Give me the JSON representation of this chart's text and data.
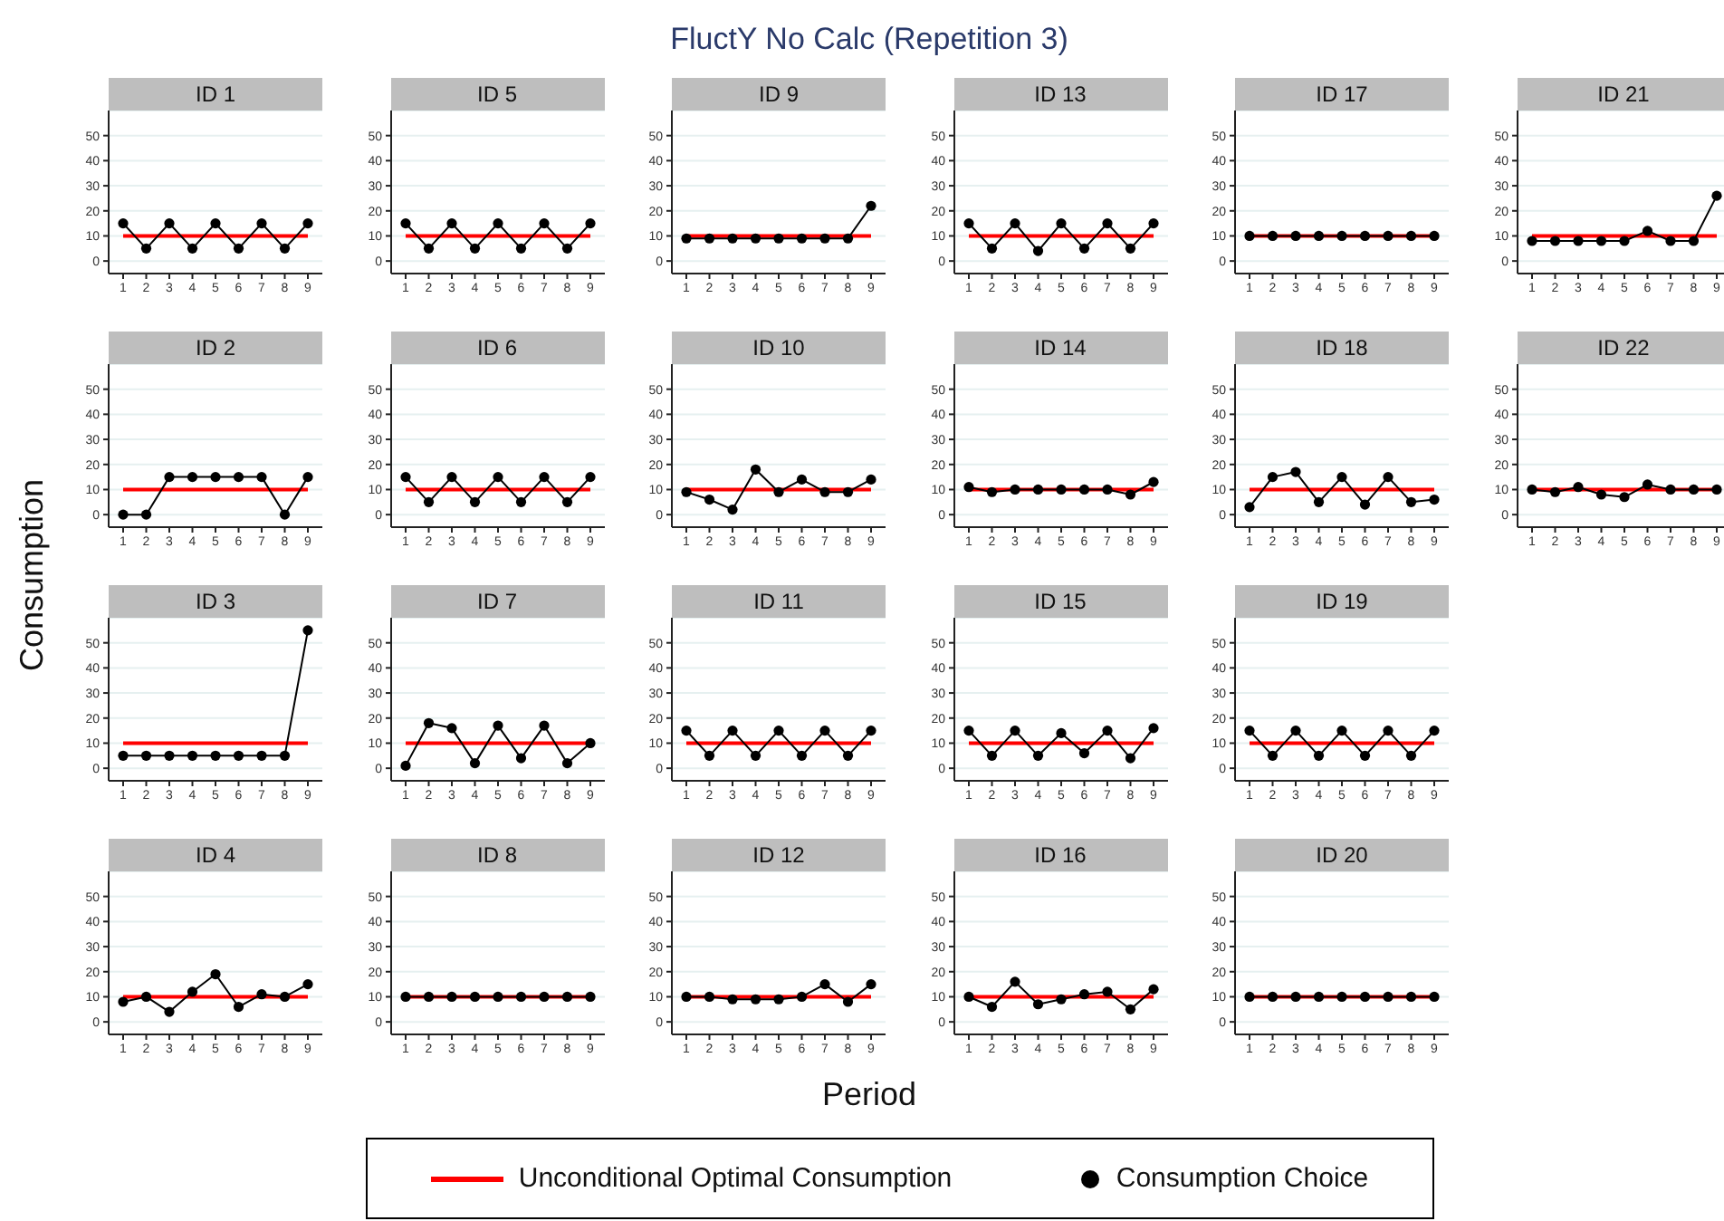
{
  "chart_data": [
    {
      "type": "other",
      "title": "FluctY No Calc (Repetition 3)",
      "xlabel": "Period",
      "ylabel": "Consumption"
    },
    {
      "type": "line",
      "title": "ID 1",
      "categories": [
        "1",
        "2",
        "3",
        "4",
        "5",
        "6",
        "7",
        "8",
        "9"
      ],
      "ylim": [
        -5,
        60
      ],
      "yticks": [
        0,
        10,
        20,
        30,
        40,
        50
      ],
      "grid": "y",
      "series": [
        {
          "color": "#ff0000",
          "marker": "none",
          "values": [
            10,
            10,
            10,
            10,
            10,
            10,
            10,
            10,
            10
          ]
        },
        {
          "color": "#000000",
          "marker": "circle",
          "values": [
            15,
            5,
            15,
            5,
            15,
            5,
            15,
            5,
            15
          ]
        }
      ]
    },
    {
      "type": "line",
      "title": "ID 5",
      "categories": [
        "1",
        "2",
        "3",
        "4",
        "5",
        "6",
        "7",
        "8",
        "9"
      ],
      "ylim": [
        -5,
        60
      ],
      "yticks": [
        0,
        10,
        20,
        30,
        40,
        50
      ],
      "grid": "y",
      "series": [
        {
          "color": "#ff0000",
          "marker": "none",
          "values": [
            10,
            10,
            10,
            10,
            10,
            10,
            10,
            10,
            10
          ]
        },
        {
          "color": "#000000",
          "marker": "circle",
          "values": [
            15,
            5,
            15,
            5,
            15,
            5,
            15,
            5,
            15
          ]
        }
      ]
    },
    {
      "type": "line",
      "title": "ID 9",
      "categories": [
        "1",
        "2",
        "3",
        "4",
        "5",
        "6",
        "7",
        "8",
        "9"
      ],
      "ylim": [
        -5,
        60
      ],
      "yticks": [
        0,
        10,
        20,
        30,
        40,
        50
      ],
      "grid": "y",
      "series": [
        {
          "color": "#ff0000",
          "marker": "none",
          "values": [
            10,
            10,
            10,
            10,
            10,
            10,
            10,
            10,
            10
          ]
        },
        {
          "color": "#000000",
          "marker": "circle",
          "values": [
            9,
            9,
            9,
            9,
            9,
            9,
            9,
            9,
            22
          ]
        }
      ]
    },
    {
      "type": "line",
      "title": "ID 13",
      "categories": [
        "1",
        "2",
        "3",
        "4",
        "5",
        "6",
        "7",
        "8",
        "9"
      ],
      "ylim": [
        -5,
        60
      ],
      "yticks": [
        0,
        10,
        20,
        30,
        40,
        50
      ],
      "grid": "y",
      "series": [
        {
          "color": "#ff0000",
          "marker": "none",
          "values": [
            10,
            10,
            10,
            10,
            10,
            10,
            10,
            10,
            10
          ]
        },
        {
          "color": "#000000",
          "marker": "circle",
          "values": [
            15,
            5,
            15,
            4,
            15,
            5,
            15,
            5,
            15
          ]
        }
      ]
    },
    {
      "type": "line",
      "title": "ID 17",
      "categories": [
        "1",
        "2",
        "3",
        "4",
        "5",
        "6",
        "7",
        "8",
        "9"
      ],
      "ylim": [
        -5,
        60
      ],
      "yticks": [
        0,
        10,
        20,
        30,
        40,
        50
      ],
      "grid": "y",
      "series": [
        {
          "color": "#ff0000",
          "marker": "none",
          "values": [
            10,
            10,
            10,
            10,
            10,
            10,
            10,
            10,
            10
          ]
        },
        {
          "color": "#000000",
          "marker": "circle",
          "values": [
            10,
            10,
            10,
            10,
            10,
            10,
            10,
            10,
            10
          ]
        }
      ]
    },
    {
      "type": "line",
      "title": "ID 21",
      "categories": [
        "1",
        "2",
        "3",
        "4",
        "5",
        "6",
        "7",
        "8",
        "9"
      ],
      "ylim": [
        -5,
        60
      ],
      "yticks": [
        0,
        10,
        20,
        30,
        40,
        50
      ],
      "grid": "y",
      "series": [
        {
          "color": "#ff0000",
          "marker": "none",
          "values": [
            10,
            10,
            10,
            10,
            10,
            10,
            10,
            10,
            10
          ]
        },
        {
          "color": "#000000",
          "marker": "circle",
          "values": [
            8,
            8,
            8,
            8,
            8,
            12,
            8,
            8,
            26
          ]
        }
      ]
    },
    {
      "type": "line",
      "title": "ID 2",
      "categories": [
        "1",
        "2",
        "3",
        "4",
        "5",
        "6",
        "7",
        "8",
        "9"
      ],
      "ylim": [
        -5,
        60
      ],
      "yticks": [
        0,
        10,
        20,
        30,
        40,
        50
      ],
      "grid": "y",
      "series": [
        {
          "color": "#ff0000",
          "marker": "none",
          "values": [
            10,
            10,
            10,
            10,
            10,
            10,
            10,
            10,
            10
          ]
        },
        {
          "color": "#000000",
          "marker": "circle",
          "values": [
            0,
            0,
            15,
            15,
            15,
            15,
            15,
            0,
            15
          ]
        }
      ]
    },
    {
      "type": "line",
      "title": "ID 6",
      "categories": [
        "1",
        "2",
        "3",
        "4",
        "5",
        "6",
        "7",
        "8",
        "9"
      ],
      "ylim": [
        -5,
        60
      ],
      "yticks": [
        0,
        10,
        20,
        30,
        40,
        50
      ],
      "grid": "y",
      "series": [
        {
          "color": "#ff0000",
          "marker": "none",
          "values": [
            10,
            10,
            10,
            10,
            10,
            10,
            10,
            10,
            10
          ]
        },
        {
          "color": "#000000",
          "marker": "circle",
          "values": [
            15,
            5,
            15,
            5,
            15,
            5,
            15,
            5,
            15
          ]
        }
      ]
    },
    {
      "type": "line",
      "title": "ID 10",
      "categories": [
        "1",
        "2",
        "3",
        "4",
        "5",
        "6",
        "7",
        "8",
        "9"
      ],
      "ylim": [
        -5,
        60
      ],
      "yticks": [
        0,
        10,
        20,
        30,
        40,
        50
      ],
      "grid": "y",
      "series": [
        {
          "color": "#ff0000",
          "marker": "none",
          "values": [
            10,
            10,
            10,
            10,
            10,
            10,
            10,
            10,
            10
          ]
        },
        {
          "color": "#000000",
          "marker": "circle",
          "values": [
            9,
            6,
            2,
            18,
            9,
            14,
            9,
            9,
            14
          ]
        }
      ]
    },
    {
      "type": "line",
      "title": "ID 14",
      "categories": [
        "1",
        "2",
        "3",
        "4",
        "5",
        "6",
        "7",
        "8",
        "9"
      ],
      "ylim": [
        -5,
        60
      ],
      "yticks": [
        0,
        10,
        20,
        30,
        40,
        50
      ],
      "grid": "y",
      "series": [
        {
          "color": "#ff0000",
          "marker": "none",
          "values": [
            10,
            10,
            10,
            10,
            10,
            10,
            10,
            10,
            10
          ]
        },
        {
          "color": "#000000",
          "marker": "circle",
          "values": [
            11,
            9,
            10,
            10,
            10,
            10,
            10,
            8,
            13
          ]
        }
      ]
    },
    {
      "type": "line",
      "title": "ID 18",
      "categories": [
        "1",
        "2",
        "3",
        "4",
        "5",
        "6",
        "7",
        "8",
        "9"
      ],
      "ylim": [
        -5,
        60
      ],
      "yticks": [
        0,
        10,
        20,
        30,
        40,
        50
      ],
      "grid": "y",
      "series": [
        {
          "color": "#ff0000",
          "marker": "none",
          "values": [
            10,
            10,
            10,
            10,
            10,
            10,
            10,
            10,
            10
          ]
        },
        {
          "color": "#000000",
          "marker": "circle",
          "values": [
            3,
            15,
            17,
            5,
            15,
            4,
            15,
            5,
            6
          ]
        }
      ]
    },
    {
      "type": "line",
      "title": "ID 22",
      "categories": [
        "1",
        "2",
        "3",
        "4",
        "5",
        "6",
        "7",
        "8",
        "9"
      ],
      "ylim": [
        -5,
        60
      ],
      "yticks": [
        0,
        10,
        20,
        30,
        40,
        50
      ],
      "grid": "y",
      "series": [
        {
          "color": "#ff0000",
          "marker": "none",
          "values": [
            10,
            10,
            10,
            10,
            10,
            10,
            10,
            10,
            10
          ]
        },
        {
          "color": "#000000",
          "marker": "circle",
          "values": [
            10,
            9,
            11,
            8,
            7,
            12,
            10,
            10,
            10
          ]
        }
      ]
    },
    {
      "type": "line",
      "title": "ID 3",
      "categories": [
        "1",
        "2",
        "3",
        "4",
        "5",
        "6",
        "7",
        "8",
        "9"
      ],
      "ylim": [
        -5,
        60
      ],
      "yticks": [
        0,
        10,
        20,
        30,
        40,
        50
      ],
      "grid": "y",
      "series": [
        {
          "color": "#ff0000",
          "marker": "none",
          "values": [
            10,
            10,
            10,
            10,
            10,
            10,
            10,
            10,
            10
          ]
        },
        {
          "color": "#000000",
          "marker": "circle",
          "values": [
            5,
            5,
            5,
            5,
            5,
            5,
            5,
            5,
            55
          ]
        }
      ]
    },
    {
      "type": "line",
      "title": "ID 7",
      "categories": [
        "1",
        "2",
        "3",
        "4",
        "5",
        "6",
        "7",
        "8",
        "9"
      ],
      "ylim": [
        -5,
        60
      ],
      "yticks": [
        0,
        10,
        20,
        30,
        40,
        50
      ],
      "grid": "y",
      "series": [
        {
          "color": "#ff0000",
          "marker": "none",
          "values": [
            10,
            10,
            10,
            10,
            10,
            10,
            10,
            10,
            10
          ]
        },
        {
          "color": "#000000",
          "marker": "circle",
          "values": [
            1,
            18,
            16,
            2,
            17,
            4,
            17,
            2,
            10
          ]
        }
      ]
    },
    {
      "type": "line",
      "title": "ID 11",
      "categories": [
        "1",
        "2",
        "3",
        "4",
        "5",
        "6",
        "7",
        "8",
        "9"
      ],
      "ylim": [
        -5,
        60
      ],
      "yticks": [
        0,
        10,
        20,
        30,
        40,
        50
      ],
      "grid": "y",
      "series": [
        {
          "color": "#ff0000",
          "marker": "none",
          "values": [
            10,
            10,
            10,
            10,
            10,
            10,
            10,
            10,
            10
          ]
        },
        {
          "color": "#000000",
          "marker": "circle",
          "values": [
            15,
            5,
            15,
            5,
            15,
            5,
            15,
            5,
            15
          ]
        }
      ]
    },
    {
      "type": "line",
      "title": "ID 15",
      "categories": [
        "1",
        "2",
        "3",
        "4",
        "5",
        "6",
        "7",
        "8",
        "9"
      ],
      "ylim": [
        -5,
        60
      ],
      "yticks": [
        0,
        10,
        20,
        30,
        40,
        50
      ],
      "grid": "y",
      "series": [
        {
          "color": "#ff0000",
          "marker": "none",
          "values": [
            10,
            10,
            10,
            10,
            10,
            10,
            10,
            10,
            10
          ]
        },
        {
          "color": "#000000",
          "marker": "circle",
          "values": [
            15,
            5,
            15,
            5,
            14,
            6,
            15,
            4,
            16
          ]
        }
      ]
    },
    {
      "type": "line",
      "title": "ID 19",
      "categories": [
        "1",
        "2",
        "3",
        "4",
        "5",
        "6",
        "7",
        "8",
        "9"
      ],
      "ylim": [
        -5,
        60
      ],
      "yticks": [
        0,
        10,
        20,
        30,
        40,
        50
      ],
      "grid": "y",
      "series": [
        {
          "color": "#ff0000",
          "marker": "none",
          "values": [
            10,
            10,
            10,
            10,
            10,
            10,
            10,
            10,
            10
          ]
        },
        {
          "color": "#000000",
          "marker": "circle",
          "values": [
            15,
            5,
            15,
            5,
            15,
            5,
            15,
            5,
            15
          ]
        }
      ]
    },
    {
      "type": "line",
      "title": "ID 4",
      "categories": [
        "1",
        "2",
        "3",
        "4",
        "5",
        "6",
        "7",
        "8",
        "9"
      ],
      "ylim": [
        -5,
        60
      ],
      "yticks": [
        0,
        10,
        20,
        30,
        40,
        50
      ],
      "grid": "y",
      "series": [
        {
          "color": "#ff0000",
          "marker": "none",
          "values": [
            10,
            10,
            10,
            10,
            10,
            10,
            10,
            10,
            10
          ]
        },
        {
          "color": "#000000",
          "marker": "circle",
          "values": [
            8,
            10,
            4,
            12,
            19,
            6,
            11,
            10,
            15
          ]
        }
      ]
    },
    {
      "type": "line",
      "title": "ID 8",
      "categories": [
        "1",
        "2",
        "3",
        "4",
        "5",
        "6",
        "7",
        "8",
        "9"
      ],
      "ylim": [
        -5,
        60
      ],
      "yticks": [
        0,
        10,
        20,
        30,
        40,
        50
      ],
      "grid": "y",
      "series": [
        {
          "color": "#ff0000",
          "marker": "none",
          "values": [
            10,
            10,
            10,
            10,
            10,
            10,
            10,
            10,
            10
          ]
        },
        {
          "color": "#000000",
          "marker": "circle",
          "values": [
            10,
            10,
            10,
            10,
            10,
            10,
            10,
            10,
            10
          ]
        }
      ]
    },
    {
      "type": "line",
      "title": "ID 12",
      "categories": [
        "1",
        "2",
        "3",
        "4",
        "5",
        "6",
        "7",
        "8",
        "9"
      ],
      "ylim": [
        -5,
        60
      ],
      "yticks": [
        0,
        10,
        20,
        30,
        40,
        50
      ],
      "grid": "y",
      "series": [
        {
          "color": "#ff0000",
          "marker": "none",
          "values": [
            10,
            10,
            10,
            10,
            10,
            10,
            10,
            10,
            10
          ]
        },
        {
          "color": "#000000",
          "marker": "circle",
          "values": [
            10,
            10,
            9,
            9,
            9,
            10,
            15,
            8,
            15
          ]
        }
      ]
    },
    {
      "type": "line",
      "title": "ID 16",
      "categories": [
        "1",
        "2",
        "3",
        "4",
        "5",
        "6",
        "7",
        "8",
        "9"
      ],
      "ylim": [
        -5,
        60
      ],
      "yticks": [
        0,
        10,
        20,
        30,
        40,
        50
      ],
      "grid": "y",
      "series": [
        {
          "color": "#ff0000",
          "marker": "none",
          "values": [
            10,
            10,
            10,
            10,
            10,
            10,
            10,
            10,
            10
          ]
        },
        {
          "color": "#000000",
          "marker": "circle",
          "values": [
            10,
            6,
            16,
            7,
            9,
            11,
            12,
            5,
            13
          ]
        }
      ]
    },
    {
      "type": "line",
      "title": "ID 20",
      "categories": [
        "1",
        "2",
        "3",
        "4",
        "5",
        "6",
        "7",
        "8",
        "9"
      ],
      "ylim": [
        -5,
        60
      ],
      "yticks": [
        0,
        10,
        20,
        30,
        40,
        50
      ],
      "grid": "y",
      "legend": "bottom",
      "series": [
        {
          "name": "Unconditional Optimal Consumption",
          "color": "#ff0000",
          "marker": "none",
          "values": [
            10,
            10,
            10,
            10,
            10,
            10,
            10,
            10,
            10
          ]
        },
        {
          "name": "Consumption Choice",
          "color": "#000000",
          "marker": "circle",
          "values": [
            10,
            10,
            10,
            10,
            10,
            10,
            10,
            10,
            10
          ]
        }
      ]
    }
  ]
}
